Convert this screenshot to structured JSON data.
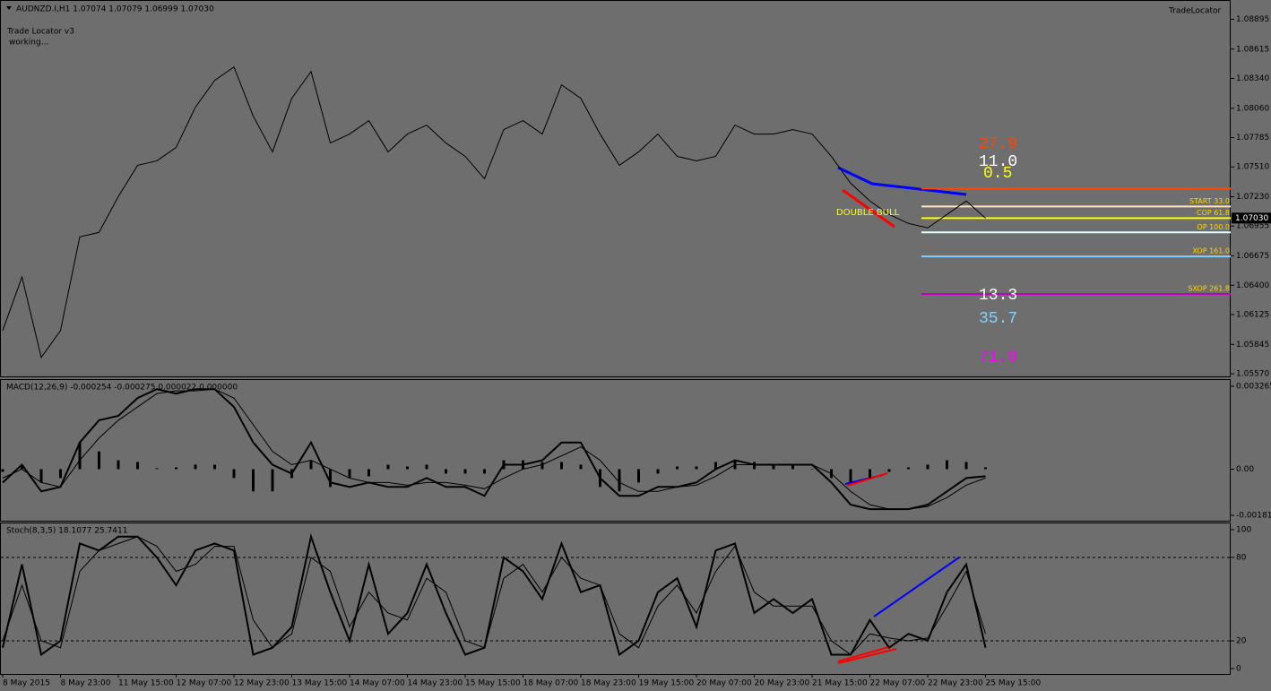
{
  "chart_data": [
    {
      "type": "line",
      "title": "AUDNZD.I,H1  1.07074 1.07079 1.06999 1.07030",
      "ylim": [
        1.05545,
        1.0905
      ],
      "yticks": [
        1.08895,
        1.08615,
        {
          "value": 1.0834,
          "label": "1.08340"
        },
        {
          "value": 1.0806,
          "label": "1.08060"
        },
        1.07785,
        {
          "value": 1.0751,
          "label": "1.07510"
        },
        {
          "value": 1.0723,
          "label": "1.07230"
        },
        1.06955,
        1.06675,
        {
          "value": 1.064,
          "label": "1.06400"
        },
        1.06125,
        1.05845,
        {
          "value": 1.0557,
          "label": "1.05570"
        }
      ],
      "current_price": {
        "value": 1.0703,
        "label": "1.07030"
      },
      "series": [
        {
          "color": "#000000",
          "values": [
            1.05975,
            1.06477,
            1.05723,
            1.05975,
            1.06854,
            1.06896,
            1.07232,
            1.07525,
            1.07567,
            1.07692,
            1.0807,
            1.08321,
            1.08447,
            1.07986,
            1.07651,
            1.08153,
            1.08405,
            1.07734,
            1.07818,
            1.07944,
            1.07651,
            1.07818,
            1.07902,
            1.07734,
            1.07609,
            1.07399,
            1.0786,
            1.07944,
            1.07818,
            1.08279,
            1.08153,
            1.07818,
            1.07525,
            1.07651,
            1.07818,
            1.07609,
            1.07567,
            1.07609,
            1.07902,
            1.07818,
            1.07818,
            1.0786,
            1.07818,
            1.07609,
            1.07357,
            1.0719,
            1.07064,
            1.0698,
            1.06938,
            1.07064,
            1.0719,
            1.0703
          ]
        }
      ],
      "levels": [
        {
          "value": 1.07307,
          "color": "#ff4500"
        },
        {
          "label": "START 33.0",
          "value": 1.07139,
          "color": "#ffe4c4"
        },
        {
          "label": "COP 61.8",
          "value": 1.0703,
          "color": "#ffff00"
        },
        {
          "label": "OP 100.0",
          "value": 1.06896,
          "color": "#e0ffff"
        },
        {
          "label": "XOP 161.0",
          "value": 1.0667,
          "color": "#87cefa"
        },
        {
          "label": "SXOP 261.8",
          "value": 1.06318,
          "color": "#c000c0"
        }
      ],
      "level_label_color": "#ffd700",
      "annotations": [
        {
          "text": "Trade Locator v3",
          "color": "#000000"
        },
        {
          "text": "working...",
          "color": "#000000"
        },
        {
          "text": "TradeLocator",
          "color": "#000000"
        },
        {
          "text": "DOUBLE  BULL",
          "color": "#ffff00"
        },
        {
          "text": "27.9",
          "color": "#ff4500"
        },
        {
          "text": "11.0",
          "color": "#ffffff"
        },
        {
          "text": "0.5",
          "color": "#ffff00"
        },
        {
          "text": "13.3",
          "color": "#ffffff"
        },
        {
          "text": "35.7",
          "color": "#87cefa"
        },
        {
          "text": "71.9",
          "color": "#ff00ff"
        }
      ]
    },
    {
      "type": "bar",
      "title": "MACD(12,26,9) -0.000254 -0.000275 0.000022 0.000000",
      "ylim": [
        -0.00203,
        0.00351
      ],
      "yticks": [
        0.003265,
        {
          "value": 0,
          "label": "0.00"
        },
        -0.001815
      ],
      "series": [
        {
          "type": "bar",
          "color": "#000000",
          "values": [
            -0.000105,
            0.000105,
            -0.000525,
            -0.00035,
            0.00105,
            0.0007,
            0.00035,
            0.00028,
            3.5e-05,
            7e-05,
            0.000175,
            0.000175,
            -0.00035,
            -0.000875,
            -0.000875,
            -0.00035,
            0.00035,
            -0.0007,
            -0.00035,
            -0.00028,
            0.000175,
            0.000105,
            0.000175,
            -0.000175,
            -0.000175,
            -0.000175,
            0.00035,
            0.00035,
            0.00028,
            0.00028,
            0.000175,
            -0.0007,
            -0.000875,
            -0.000525,
            -0.000175,
            0.000105,
            0.000105,
            0.00028,
            0.00035,
            0.00028,
            0.000175,
            0.000175,
            0,
            -0.00035,
            -0.000525,
            -0.00035,
            -0.000105,
            7e-05,
            0.000175,
            0.00035,
            0.00028,
            7e-05
          ]
        },
        {
          "type": "line",
          "color": "#000000",
          "width": 2,
          "values": [
            -0.000525,
            0.000175,
            -0.000875,
            -0.0007,
            0.00105,
            0.001925,
            0.0021,
            0.0028,
            0.00315,
            0.002975,
            0.00315,
            0.00315,
            0.00245,
            0.00105,
            0.000175,
            -0.000175,
            0.00105,
            -0.000525,
            -0.0007,
            -0.000525,
            -0.0007,
            -0.0007,
            -0.00035,
            -0.0007,
            -0.0007,
            -0.00105,
            0.000175,
            0.000175,
            0.00035,
            0.00105,
            0.00105,
            -0.00035,
            -0.00105,
            -0.00105,
            -0.0007,
            -0.0007,
            -0.000525,
            0,
            0.00035,
            0.000175,
            0.000175,
            0.000175,
            0.000175,
            -0.000525,
            -0.0014,
            -0.001575,
            -0.001575,
            -0.001575,
            -0.0014,
            -0.000875,
            -0.00035,
            -0.00028
          ]
        },
        {
          "type": "line",
          "color": "#000000",
          "width": 1,
          "values": [
            -0.00035,
            0,
            -0.000525,
            -0.0007,
            0.00035,
            0.001225,
            0.001925,
            0.00245,
            0.002975,
            0.00308,
            0.00308,
            0.00315,
            0.0028,
            0.00175,
            0.0007,
            0.000175,
            0.00035,
            0,
            -0.00035,
            -0.000525,
            -0.000525,
            -0.00063,
            -0.000525,
            -0.000525,
            -0.00063,
            -0.00077,
            -0.00035,
            0,
            0.000175,
            0.000525,
            0.000875,
            0.00035,
            -0.000525,
            -0.000875,
            -0.000875,
            -0.0007,
            -0.00063,
            -0.00028,
            0.000175,
            0.000175,
            0.000175,
            0.000175,
            0.000175,
            -0.000175,
            -0.000875,
            -0.0014,
            -0.001575,
            -0.001575,
            -0.00147,
            -0.00112,
            -0.00063,
            -0.00035
          ]
        }
      ]
    },
    {
      "type": "line",
      "title": "Stoch(8,3,5) 18.1077 25.7411",
      "ylim": [
        -3.9,
        104.5
      ],
      "yticks": [
        100,
        80,
        20,
        0
      ],
      "levels": [
        {
          "value": 80
        },
        {
          "value": 20
        }
      ],
      "grid": "dashed",
      "categories": [
        "8 May 2015",
        null,
        null,
        "8 May 23:00",
        null,
        null,
        "11 May 15:00",
        null,
        null,
        "12 May 07:00",
        null,
        null,
        "12 May 23:00",
        null,
        null,
        "13 May 15:00",
        null,
        null,
        "14 May 07:00",
        null,
        null,
        "14 May 23:00",
        null,
        null,
        "15 May 15:00",
        null,
        null,
        "18 May 07:00",
        null,
        null,
        "18 May 23:00",
        null,
        null,
        "19 May 15:00",
        null,
        null,
        "20 May 07:00",
        null,
        null,
        "20 May 23:00",
        null,
        null,
        "21 May 15:00",
        null,
        null,
        "22 May 07:00",
        null,
        null,
        "22 May 23:00",
        null,
        null,
        "25 May 15:00"
      ],
      "series": [
        {
          "type": "line",
          "color": "#000000",
          "width": 2,
          "values": [
            15,
            75,
            10,
            20,
            90,
            85,
            95,
            95,
            80,
            60,
            85,
            90,
            85,
            10,
            15,
            30,
            95,
            55,
            20,
            75,
            25,
            40,
            75,
            40,
            10,
            15,
            80,
            70,
            50,
            90,
            55,
            60,
            10,
            20,
            55,
            65,
            30,
            85,
            90,
            40,
            50,
            40,
            50,
            10,
            10,
            35,
            15,
            25,
            20,
            55,
            75,
            15
          ]
        },
        {
          "type": "line",
          "color": "#000000",
          "width": 1,
          "values": [
            20,
            60,
            20,
            15,
            70,
            85,
            90,
            95,
            88,
            70,
            75,
            88,
            88,
            35,
            15,
            25,
            80,
            70,
            30,
            55,
            40,
            35,
            65,
            55,
            20,
            15,
            65,
            75,
            55,
            80,
            65,
            60,
            25,
            15,
            45,
            60,
            40,
            70,
            88,
            55,
            45,
            45,
            45,
            20,
            10,
            25,
            22,
            20,
            22,
            45,
            70,
            25
          ]
        }
      ]
    }
  ]
}
